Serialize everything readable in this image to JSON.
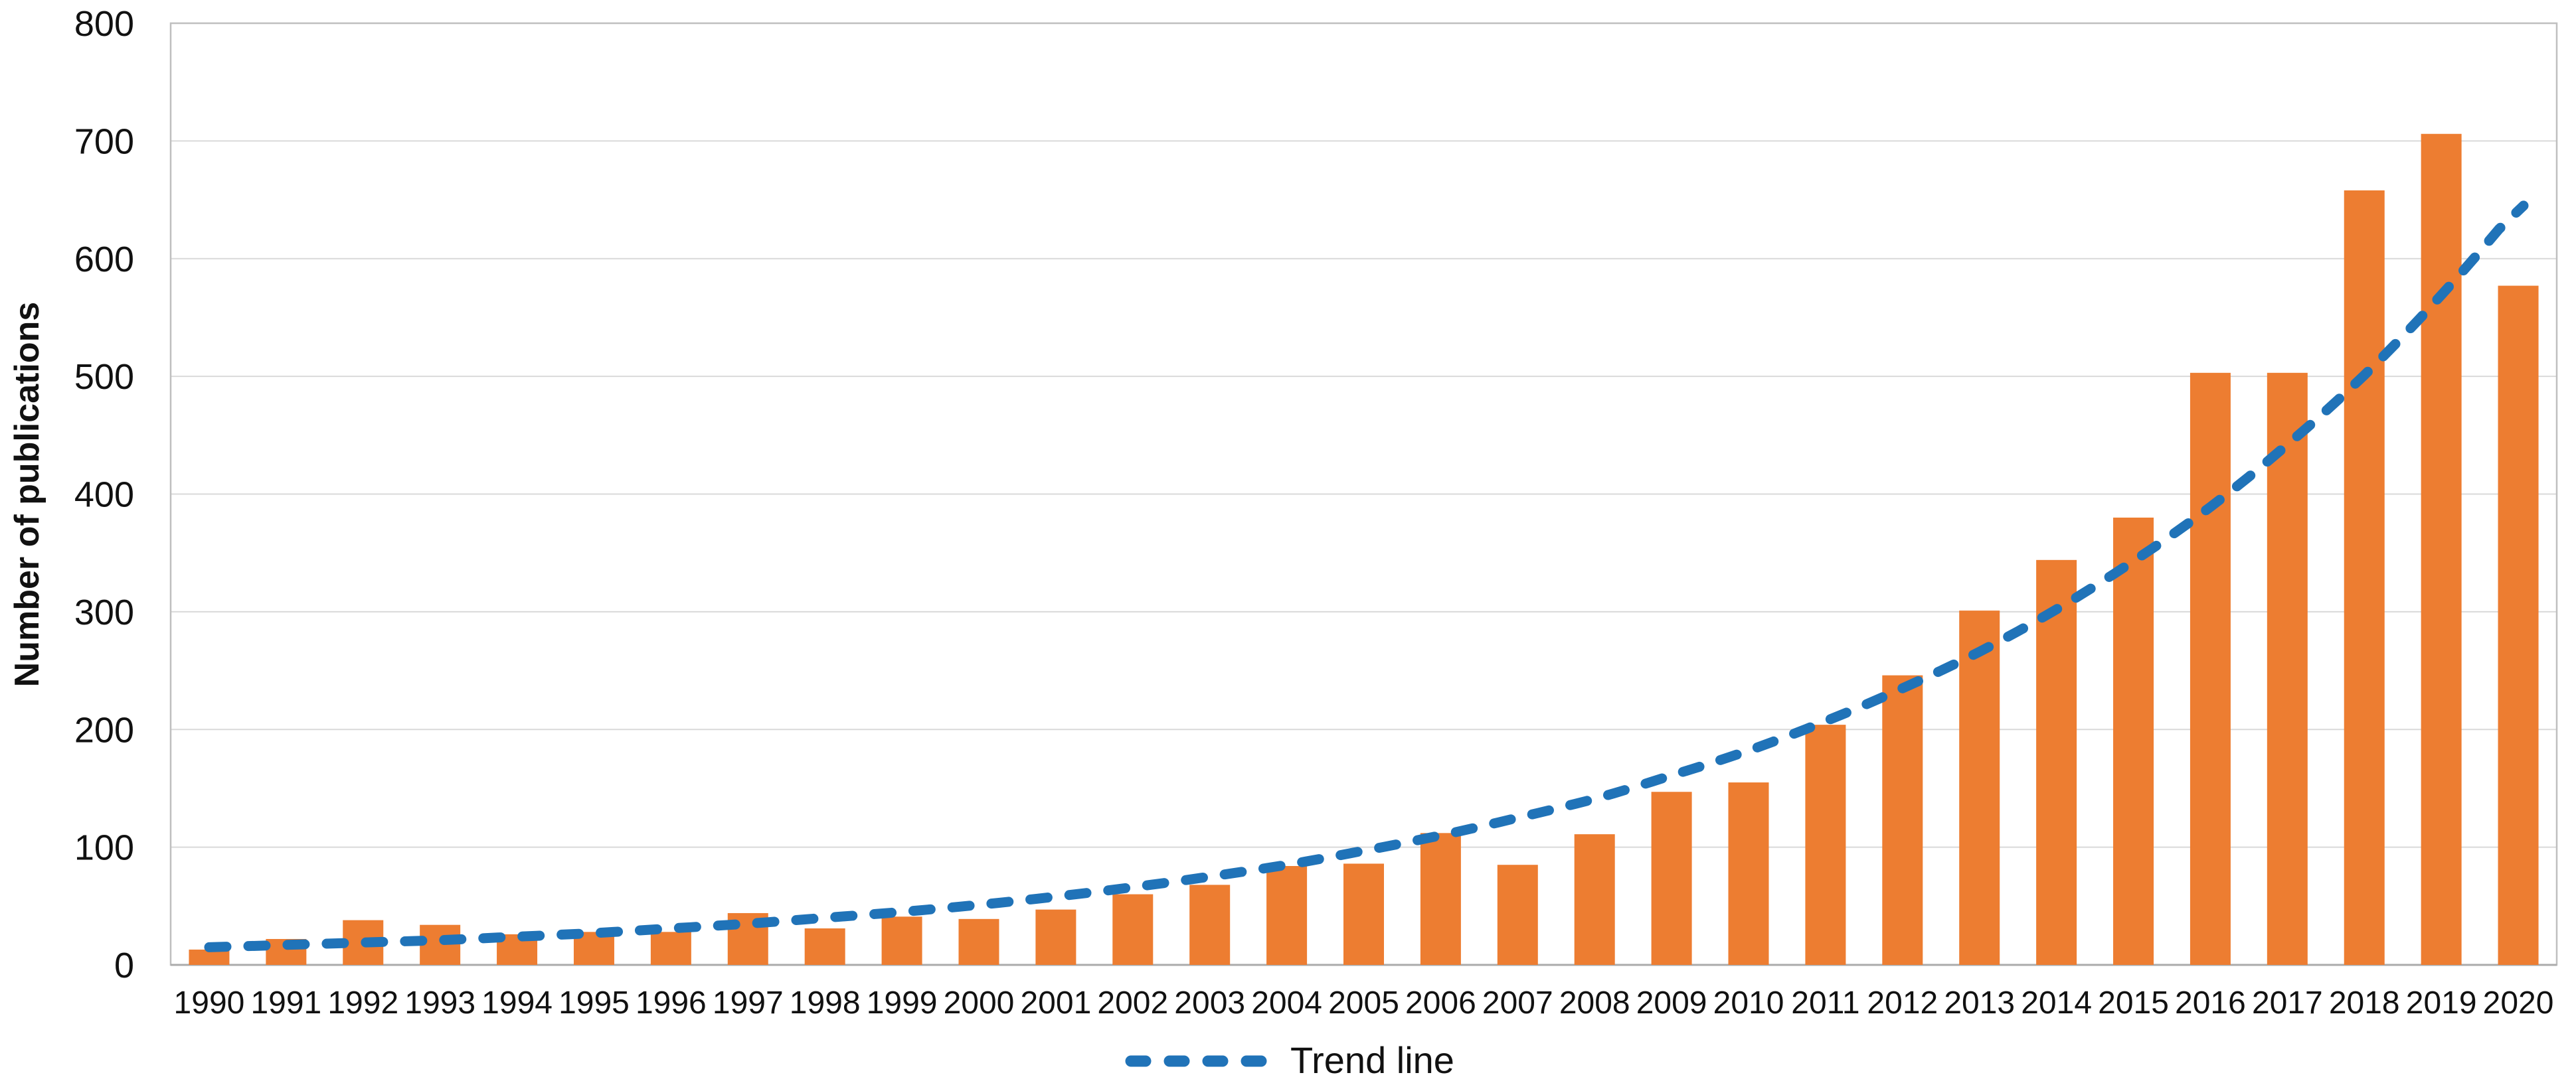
{
  "chart_data": {
    "type": "bar",
    "title": "",
    "xlabel": "",
    "ylabel": "Number of publications",
    "ylim": [
      0,
      800
    ],
    "ytick_step": 100,
    "ytick_labels": [
      "0",
      "100",
      "200",
      "300",
      "400",
      "500",
      "600",
      "700",
      "800"
    ],
    "grid": true,
    "legend": {
      "label": "Trend line",
      "position": "bottom-center"
    },
    "categories": [
      "1990",
      "1991",
      "1992",
      "1993",
      "1994",
      "1995",
      "1996",
      "1997",
      "1998",
      "1999",
      "2000",
      "2001",
      "2002",
      "2003",
      "2004",
      "2005",
      "2006",
      "2007",
      "2008",
      "2009",
      "2010",
      "2011",
      "2012",
      "2013",
      "2014",
      "2015",
      "2016",
      "2017",
      "2018",
      "2019",
      "2020"
    ],
    "series": [
      {
        "name": "Number of publications",
        "type": "bar",
        "color": "#ED7D31",
        "values": [
          13,
          22,
          38,
          34,
          26,
          28,
          28,
          44,
          31,
          41,
          39,
          47,
          60,
          68,
          84,
          86,
          112,
          85,
          111,
          147,
          155,
          204,
          246,
          301,
          344,
          380,
          503,
          503,
          658,
          706,
          577
        ]
      },
      {
        "name": "Trend line",
        "type": "line",
        "style": "dashed",
        "color": "#2073B8",
        "values": [
          15,
          17,
          19,
          21,
          24,
          27,
          31,
          35,
          40,
          45,
          51,
          58,
          66,
          75,
          85,
          97,
          110,
          125,
          141,
          161,
          182,
          207,
          235,
          266,
          302,
          343,
          389,
          442,
          501,
          569,
          645
        ]
      }
    ]
  },
  "colors": {
    "bar": "#ED7D31",
    "trend": "#2073B8",
    "gridline": "#D9D9D9",
    "plot_border": "#BFBFBF",
    "baseline": "#ABABAB",
    "text": "#111111",
    "background": "#FFFFFF"
  }
}
